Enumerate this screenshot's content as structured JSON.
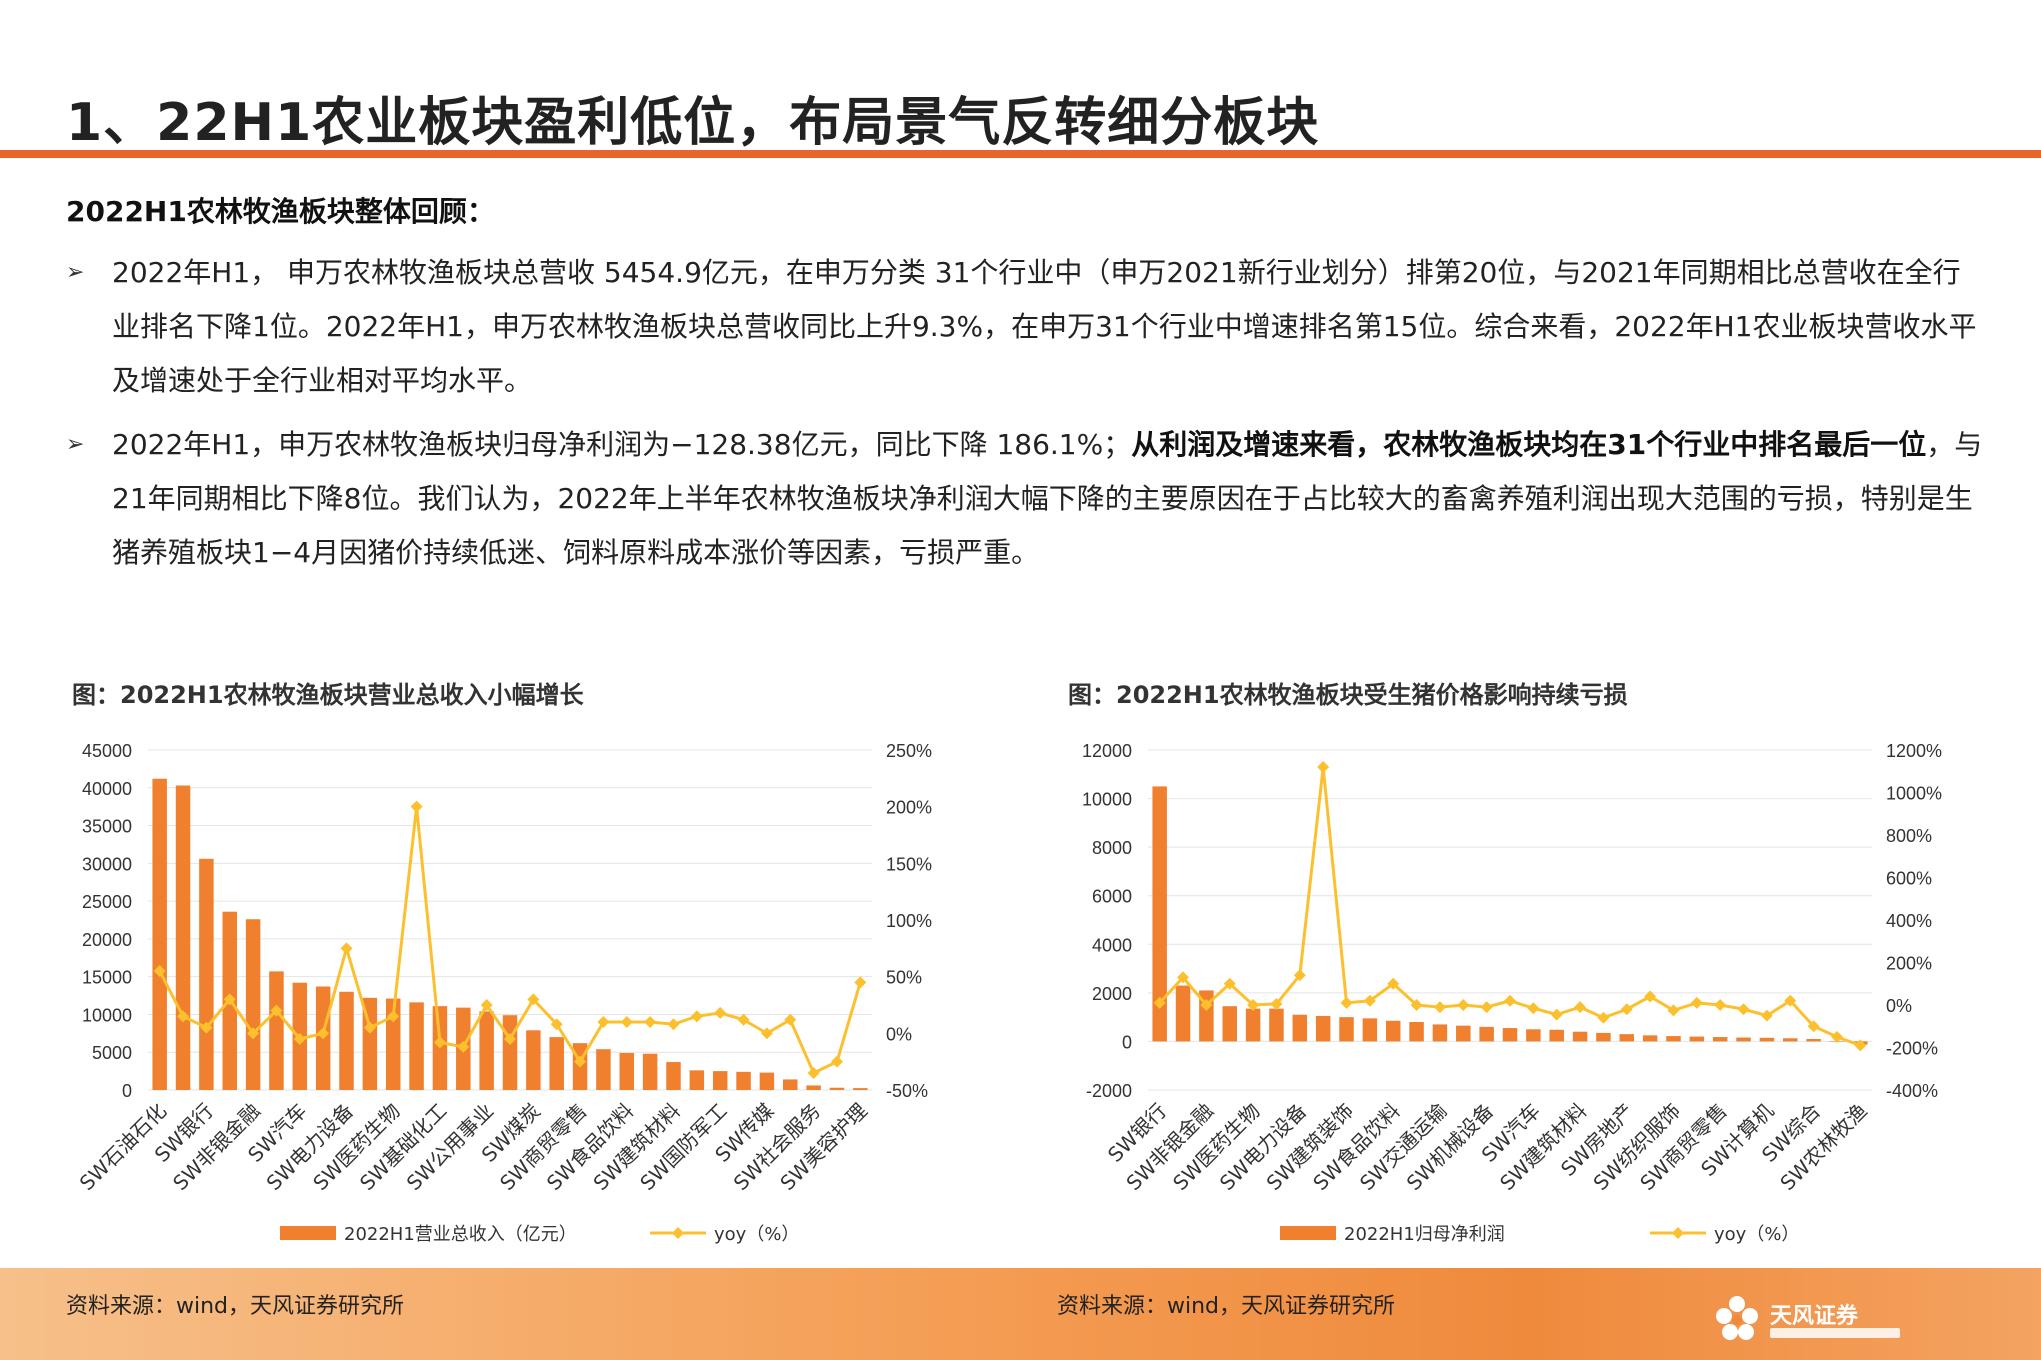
{
  "header": {
    "title": "1、22H1农业板块盈利低位，布局景气反转细分板块"
  },
  "summary": {
    "heading": "2022H1农林牧渔板块整体回顾：",
    "bullets": [
      {
        "text": "2022年H1， 申万农林牧渔板块总营收 5454.9亿元，在申万分类 31个行业中（申万2021新行业划分）排第20位，与2021年同期相比总营收在全行业排名下降1位。2022年H1，申万农林牧渔板块总营收同比上升9.3%，在申万31个行业中增速排名第15位。综合来看，2022年H1农业板块营收水平及增速处于全行业相对平均水平。"
      },
      {
        "text_before": "2022年H1，申万农林牧渔板块归母净利润为−128.38亿元，同比下降 186.1%；",
        "text_bold": "从利润及增速来看，农林牧渔板块均在31个行业中排名最后一位",
        "text_after": "，与21年同期相比下降8位。我们认为，2022年上半年农林牧渔板块净利润大幅下降的主要原因在于占比较大的畜禽养殖利润出现大范围的亏损，特别是生猪养殖板块1−4月因猪价持续低迷、饲料原料成本涨价等因素，亏损严重。"
      }
    ]
  },
  "chart_data": [
    {
      "type": "bar",
      "title": "图：2022H1农林牧渔板块营业总收入小幅增长",
      "categories": [
        "SW石油石化",
        "SW银行",
        "SW非银金融",
        "SW汽车",
        "SW电力设备",
        "SW医药生物",
        "SW基础化工",
        "SW公用事业",
        "SW煤炭",
        "SW商贸零售",
        "SW食品饮料",
        "SW建筑材料",
        "SW国防军工",
        "SW传媒",
        "SW社会服务",
        "SW美容护理"
      ],
      "all_bar_values": [
        41200,
        40300,
        30600,
        23600,
        22600,
        15700,
        14200,
        13700,
        13000,
        12200,
        12100,
        11600,
        11100,
        10900,
        10400,
        9900,
        7900,
        7000,
        6200,
        5400,
        4900,
        4800,
        3700,
        2600,
        2500,
        2400,
        2300,
        1400,
        600,
        300,
        250
      ],
      "all_line_values": [
        55,
        15,
        5,
        30,
        0,
        20,
        -5,
        0,
        75,
        5,
        15,
        200,
        -8,
        -12,
        25,
        -5,
        30,
        8,
        -25,
        10,
        10,
        10,
        8,
        15,
        18,
        12,
        0,
        12,
        -35,
        -25,
        45
      ],
      "series": [
        {
          "name": "2022H1营业总收入（亿元）",
          "axis": "left",
          "color": "#f07f2e"
        },
        {
          "name": "yoy（%）",
          "axis": "right",
          "color": "#fcc02e"
        }
      ],
      "y_left_ticks": [
        "45000",
        "40000",
        "35000",
        "30000",
        "25000",
        "20000",
        "15000",
        "10000",
        "5000",
        "0"
      ],
      "y_right_ticks": [
        "250%",
        "200%",
        "150%",
        "100%",
        "50%",
        "0%",
        "-50%"
      ],
      "ylim_left": [
        0,
        45000
      ],
      "ylim_right": [
        -50,
        250
      ],
      "grid": true,
      "legend": "bottom"
    },
    {
      "type": "bar",
      "title": "图：2022H1农林牧渔板块受生猪价格影响持续亏损",
      "categories": [
        "SW银行",
        "SW非银金融",
        "SW医药生物",
        "SW电力设备",
        "SW建筑装饰",
        "SW食品饮料",
        "SW交通运输",
        "SW机械设备",
        "SW汽车",
        "SW建筑材料",
        "SW房地产",
        "SW纺织服饰",
        "SW商贸零售",
        "SW计算机",
        "SW综合",
        "SW农林牧渔"
      ],
      "all_bar_values": [
        10500,
        2300,
        2100,
        1450,
        1350,
        1350,
        1100,
        1050,
        1000,
        950,
        850,
        800,
        700,
        650,
        600,
        550,
        500,
        480,
        400,
        350,
        300,
        250,
        220,
        200,
        180,
        160,
        150,
        130,
        100,
        0,
        -128
      ],
      "all_line_values": [
        10,
        130,
        0,
        100,
        0,
        5,
        140,
        1120,
        10,
        20,
        100,
        0,
        -10,
        0,
        -10,
        20,
        -15,
        -45,
        -10,
        -60,
        -20,
        40,
        -25,
        10,
        0,
        -20,
        -50,
        20,
        -100,
        -150,
        -190
      ],
      "series": [
        {
          "name": "2022H1归母净利润",
          "axis": "left",
          "color": "#f07f2e"
        },
        {
          "name": "yoy（%）",
          "axis": "right",
          "color": "#fcc02e"
        }
      ],
      "y_left_ticks": [
        "12000",
        "10000",
        "8000",
        "6000",
        "4000",
        "2000",
        "0",
        "-2000"
      ],
      "y_right_ticks": [
        "1200%",
        "1000%",
        "800%",
        "600%",
        "400%",
        "200%",
        "0%",
        "-200%",
        "-400%"
      ],
      "ylim_left": [
        -2000,
        12000
      ],
      "ylim_right": [
        -400,
        1200
      ],
      "grid": true,
      "legend": "bottom"
    }
  ],
  "footer": {
    "source1": "资料来源：wind，天风证券研究所",
    "source2": "资料来源：wind，天风证券研究所",
    "logo_text": "天风证券"
  }
}
